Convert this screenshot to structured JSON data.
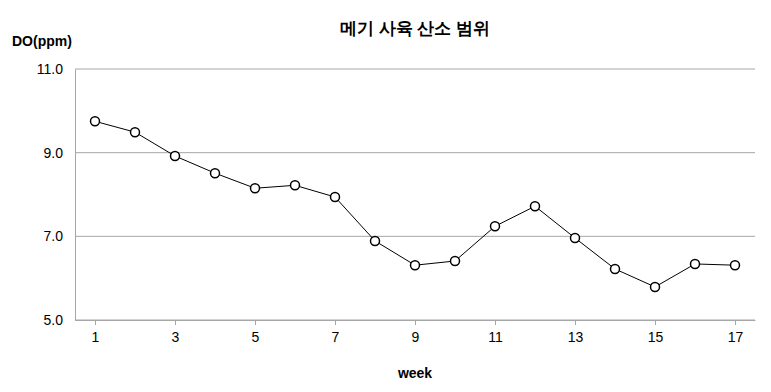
{
  "chart_data": {
    "type": "line",
    "title": "메기 사육 산소 범위",
    "y_label": "DO(ppm)",
    "x_label": "week",
    "x": [
      1,
      2,
      3,
      4,
      5,
      6,
      7,
      8,
      9,
      10,
      11,
      12,
      13,
      14,
      15,
      16,
      17
    ],
    "values": [
      9.75,
      9.49,
      8.92,
      8.51,
      8.15,
      8.22,
      7.94,
      6.89,
      6.31,
      6.41,
      7.24,
      7.72,
      6.96,
      6.22,
      5.79,
      6.34,
      6.31
    ],
    "color": "#000000",
    "marker": "circle",
    "line_style": "solid",
    "xlim": [
      0.5,
      17.5
    ],
    "xticks": [
      1,
      3,
      5,
      7,
      9,
      11,
      13,
      15,
      17
    ],
    "ylim": [
      5,
      11
    ],
    "yticks": [
      {
        "value": 5,
        "label": "5.0"
      },
      {
        "value": 7,
        "label": "7.0"
      },
      {
        "value": 9,
        "label": "9.0"
      },
      {
        "value": 11,
        "label": "11.0"
      }
    ],
    "grid": true
  }
}
